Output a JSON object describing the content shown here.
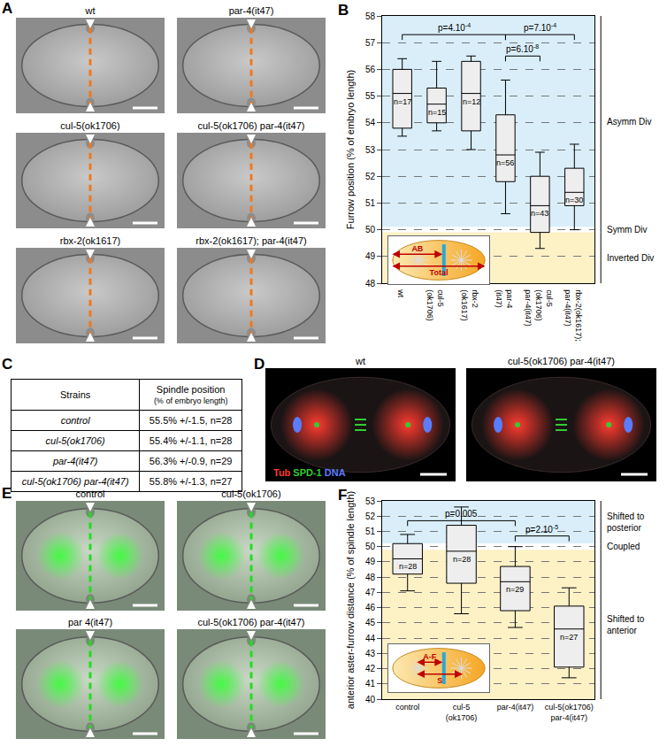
{
  "panels": {
    "A": {
      "letter": "A",
      "images": [
        {
          "label": "wt"
        },
        {
          "label": "par-4(it47)"
        },
        {
          "label": "cul-5(ok1706)"
        },
        {
          "label": "cul-5(ok1706) par-4(it47)"
        },
        {
          "label": "rbx-2(ok1617)"
        },
        {
          "label": "rbx-2(ok1617); par-4(it47)"
        }
      ]
    },
    "C": {
      "letter": "C",
      "table": {
        "header": [
          "Strains",
          "Spindle position\n(% of embryo length)"
        ],
        "rows": [
          [
            "control",
            "55.5% +/-1.5, n=28"
          ],
          [
            "cul-5(ok1706)",
            "55.4% +/-1.1, n=28"
          ],
          [
            "par-4(it47)",
            "56.3% +/-0.9, n=29"
          ],
          [
            "cul-5(ok1706) par-4(it47)",
            "55.8% +/-1.3, n=27"
          ]
        ]
      }
    },
    "D": {
      "letter": "D",
      "images": [
        {
          "label": "wt"
        },
        {
          "label": "cul-5(ok1706) par-4(it47)"
        }
      ],
      "channels": [
        {
          "name": "Tub",
          "color": "#ff3b2f"
        },
        {
          "name": "SPD-1",
          "color": "#33cc33"
        },
        {
          "name": "DNA",
          "color": "#5a7cff"
        }
      ]
    },
    "E": {
      "letter": "E",
      "images": [
        {
          "label": "control"
        },
        {
          "label": "cul-5(ok1706)"
        },
        {
          "label": "par 4(it47)"
        },
        {
          "label": "cul-5(ok1706) par-4(it47)"
        }
      ]
    }
  },
  "chart_data": [
    {
      "panel": "B",
      "type": "box",
      "ylabel": "Furrow position (% of embryo length)",
      "categories": [
        "wt",
        "cul-5\n(ok1706)",
        "rbx-2\n(ok1617)",
        "par-4\n(it47)",
        "cul-5\n(ok1706)\npar-4(it47)",
        "rbx-2(ok1617);\npar-4(it47)"
      ],
      "boxes": [
        {
          "lower_whisker": 53.5,
          "q1": 53.8,
          "median": 55.1,
          "q3": 56.0,
          "upper_whisker": 56.4,
          "n_label": "n=17"
        },
        {
          "lower_whisker": 53.7,
          "q1": 54.0,
          "median": 54.7,
          "q3": 55.3,
          "upper_whisker": 56.3,
          "n_label": "n=15"
        },
        {
          "lower_whisker": 53.0,
          "q1": 53.7,
          "median": 55.1,
          "q3": 56.3,
          "upper_whisker": 56.5,
          "n_label": "n=12"
        },
        {
          "lower_whisker": 50.6,
          "q1": 51.8,
          "median": 52.8,
          "q3": 54.3,
          "upper_whisker": 55.6,
          "n_label": "n=56"
        },
        {
          "lower_whisker": 49.3,
          "q1": 49.9,
          "median": 50.9,
          "q3": 52.0,
          "upper_whisker": 52.9,
          "n_label": "n=43"
        },
        {
          "lower_whisker": 50.0,
          "q1": 50.9,
          "median": 51.4,
          "q3": 52.3,
          "upper_whisker": 53.2,
          "n_label": "n=30"
        }
      ],
      "color": "#eeeeee",
      "ylim": [
        48,
        58
      ],
      "yticks": [
        48,
        49,
        50,
        51,
        52,
        53,
        54,
        55,
        56,
        57,
        58
      ],
      "grid": true,
      "regions": [
        {
          "label": "Asymm Div",
          "from": 50.1,
          "to": 58,
          "color": "#d9eef8"
        },
        {
          "label": "Symm Div",
          "from": 49.9,
          "to": 50.1,
          "color": "#ffffff"
        },
        {
          "label": "Inverted Div",
          "from": 48,
          "to": 49.9,
          "color": "#fdf1c6"
        }
      ],
      "comparisons": [
        {
          "from": 0,
          "to": 3,
          "y": 57.3,
          "text": "p=4.10",
          "exponent": "-4"
        },
        {
          "from": 3,
          "to": 5,
          "y": 57.3,
          "text": "p=7.10",
          "exponent": "-4"
        },
        {
          "from": 3,
          "to": 4,
          "y": 56.5,
          "text": "p=6.10",
          "exponent": "-8"
        }
      ],
      "inset": {
        "labels": [
          "AB",
          "Total"
        ]
      }
    },
    {
      "panel": "F",
      "type": "box",
      "ylabel": "anterior aster-furrow distance (% of spindle length)",
      "categories": [
        "control",
        "cul-5\n(ok1706)",
        "par-4(it47)",
        "cul-5(ok1706)\npar-4(it47)"
      ],
      "boxes": [
        {
          "lower_whisker": 47.1,
          "q1": 48.2,
          "median": 49.2,
          "q3": 50.2,
          "upper_whisker": 50.8,
          "n_label": "n=28"
        },
        {
          "lower_whisker": 45.6,
          "q1": 47.6,
          "median": 49.7,
          "q3": 51.4,
          "upper_whisker": 52.6,
          "n_label": "n=28"
        },
        {
          "lower_whisker": 44.7,
          "q1": 45.8,
          "median": 47.7,
          "q3": 48.7,
          "upper_whisker": 50.0,
          "n_label": "n=29"
        },
        {
          "lower_whisker": 41.4,
          "q1": 42.1,
          "median": 44.6,
          "q3": 46.1,
          "upper_whisker": 47.3,
          "n_label": "n=27"
        }
      ],
      "color": "#eeeeee",
      "ylim": [
        40,
        53
      ],
      "yticks": [
        40,
        41,
        42,
        43,
        44,
        45,
        46,
        47,
        48,
        49,
        50,
        51,
        52,
        53
      ],
      "grid": true,
      "regions": [
        {
          "label": "Shifted to\nposterior",
          "from": 50.2,
          "to": 53,
          "color": "#d9eef8"
        },
        {
          "label": "Coupled",
          "from": 49.8,
          "to": 50.2,
          "color": "#ffffff"
        },
        {
          "label": "Shifted to\nanterior",
          "from": 40,
          "to": 49.8,
          "color": "#fdf1c6"
        }
      ],
      "comparisons": [
        {
          "from": 0,
          "to": 2,
          "y": 51.7,
          "text": "p=0.005"
        },
        {
          "from": 2,
          "to": 3,
          "y": 50.7,
          "text": "p=2.10",
          "exponent": "-5"
        }
      ],
      "inset": {
        "labels": [
          "A-F",
          "S"
        ]
      }
    }
  ]
}
